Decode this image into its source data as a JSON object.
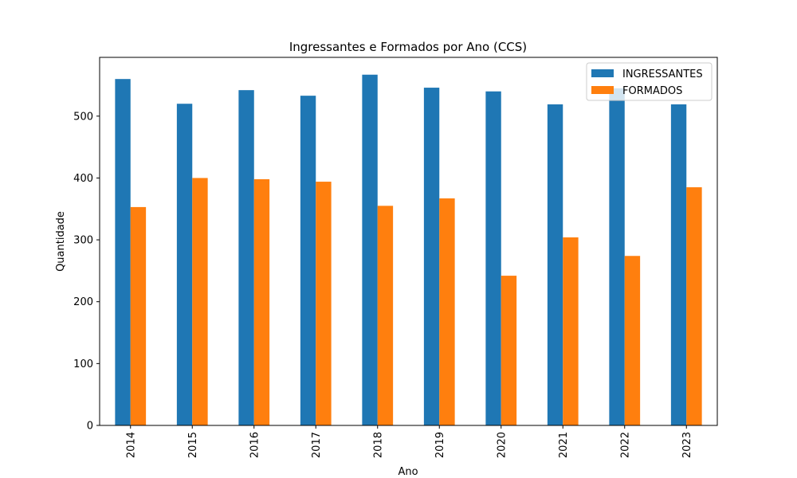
{
  "chart_data": {
    "type": "bar",
    "title": "Ingressantes e Formados por Ano (CCS)",
    "xlabel": "Ano",
    "ylabel": "Quantidade",
    "categories": [
      "2014",
      "2015",
      "2016",
      "2017",
      "2018",
      "2019",
      "2020",
      "2021",
      "2022",
      "2023"
    ],
    "series": [
      {
        "name": "INGRESSANTES",
        "color": "#1f77b4",
        "values": [
          560,
          520,
          542,
          533,
          567,
          546,
          540,
          519,
          545,
          519
        ]
      },
      {
        "name": "FORMADOS",
        "color": "#ff7f0e",
        "values": [
          353,
          400,
          398,
          394,
          355,
          367,
          242,
          304,
          274,
          385
        ]
      }
    ],
    "ylim": [
      0,
      595
    ],
    "yticks": [
      0,
      100,
      200,
      300,
      400,
      500
    ],
    "grid": false,
    "legend_position": "top-right"
  }
}
